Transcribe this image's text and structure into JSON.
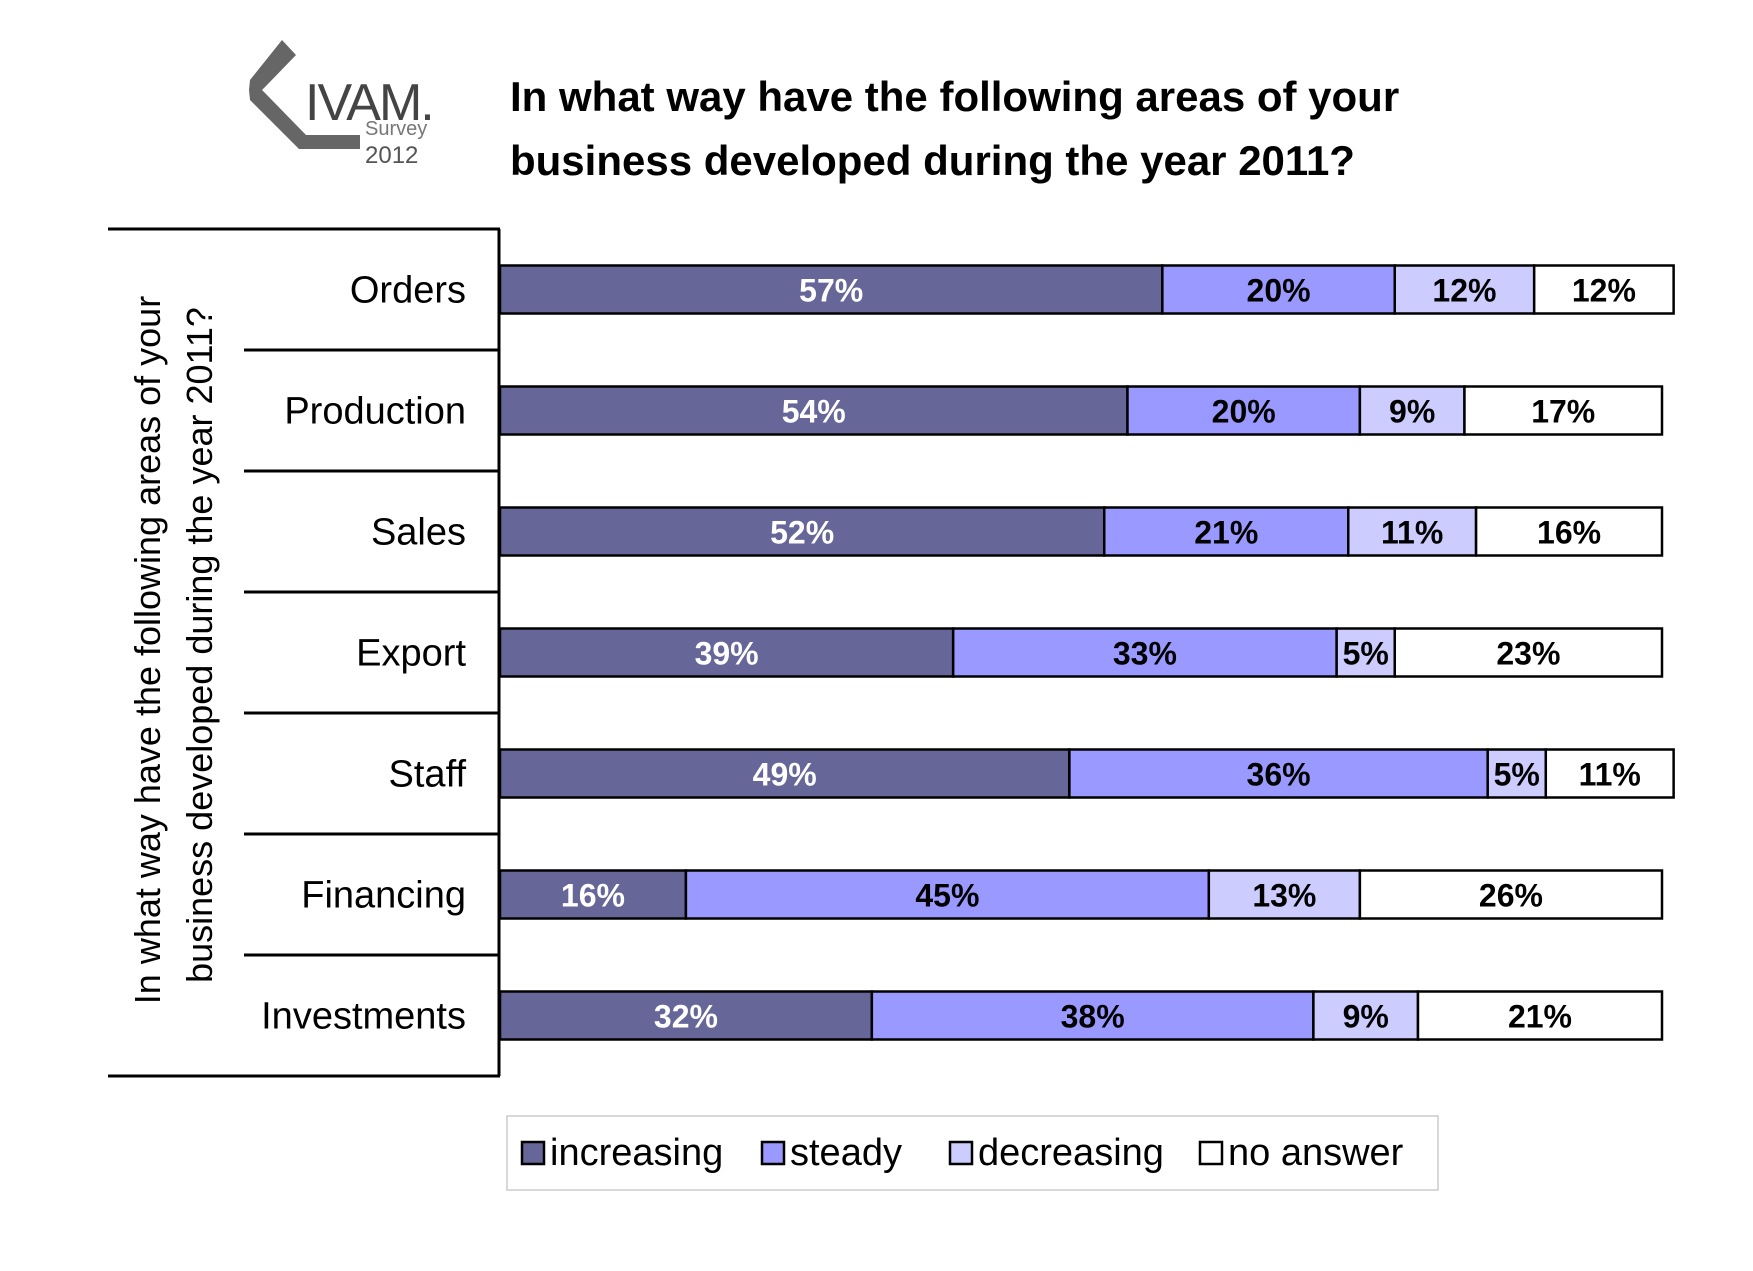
{
  "logo": {
    "brand": "IVAM.",
    "line1": "Survey",
    "line2": "2012"
  },
  "chart_data": {
    "type": "bar",
    "orientation": "horizontal",
    "stacked": true,
    "title": "In what way have the following areas of your business developed during the year 2011?",
    "ylabel": "In what way have the following areas of your business developed during the year 2011?",
    "categories": [
      "Orders",
      "Production",
      "Sales",
      "Export",
      "Staff",
      "Financing",
      "Investments"
    ],
    "series": [
      {
        "name": "increasing",
        "color": "#666699",
        "values": [
          57,
          54,
          52,
          39,
          49,
          16,
          32
        ]
      },
      {
        "name": "steady",
        "color": "#9999ff",
        "values": [
          20,
          20,
          21,
          33,
          36,
          45,
          38
        ]
      },
      {
        "name": "decreasing",
        "color": "#ccccff",
        "values": [
          12,
          9,
          11,
          5,
          5,
          13,
          9
        ]
      },
      {
        "name": "no answer",
        "color": "#ffffff",
        "values": [
          12,
          17,
          16,
          23,
          11,
          26,
          21
        ]
      }
    ],
    "value_suffix": "%",
    "legend_position": "bottom",
    "grid": false
  }
}
